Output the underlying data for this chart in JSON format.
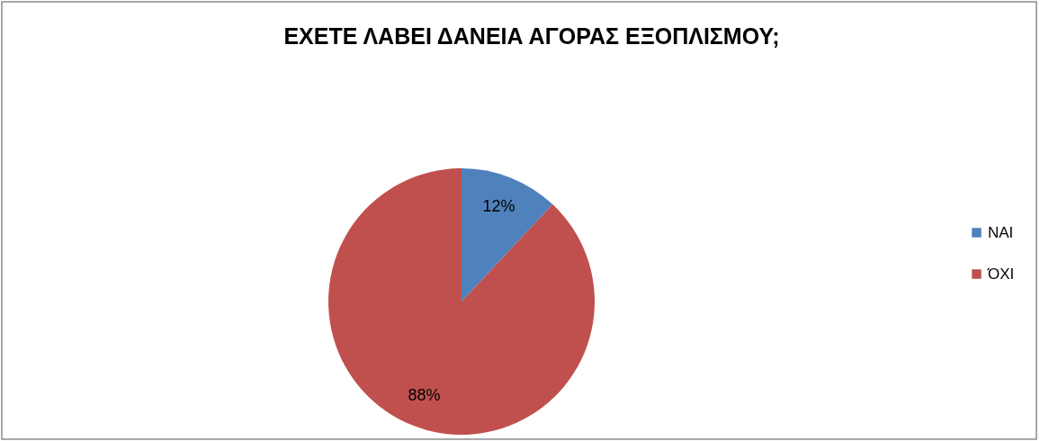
{
  "chart_data": {
    "type": "pie",
    "title": "ΕΧΕΤΕ ΛΑΒΕΙ ΔΑΝΕΙΑ ΑΓΟΡΑΣ ΕΞΟΠΛΙΣΜΟΥ;",
    "categories": [
      "ΝΑΙ",
      "ΌΧΙ"
    ],
    "values": [
      12,
      88
    ],
    "colors": [
      "#4f81bd",
      "#c0504d"
    ],
    "value_labels": [
      "12%",
      "88%"
    ],
    "legend": "right"
  }
}
